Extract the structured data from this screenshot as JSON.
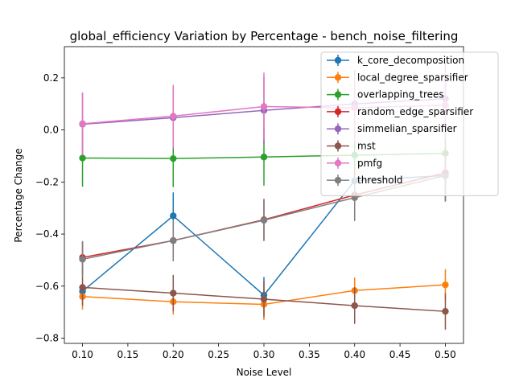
{
  "chart_data": {
    "type": "line",
    "title": "global_efficiency Variation by Percentage - bench_noise_filtering",
    "xlabel": "Noise Level",
    "ylabel": "Percentage Change",
    "xlim": [
      0.08,
      0.52
    ],
    "ylim": [
      -0.82,
      0.32
    ],
    "xticks": [
      0.1,
      0.15,
      0.2,
      0.25,
      0.3,
      0.35,
      0.4,
      0.45,
      0.5
    ],
    "xtick_labels": [
      "0.10",
      "0.15",
      "0.20",
      "0.25",
      "0.30",
      "0.35",
      "0.40",
      "0.45",
      "0.50"
    ],
    "yticks": [
      -0.8,
      -0.6,
      -0.4,
      -0.2,
      0.0,
      0.2
    ],
    "ytick_labels": [
      "−0.8",
      "−0.6",
      "−0.4",
      "−0.2",
      "0.0",
      "0.2"
    ],
    "grid": false,
    "legend_position": "top-right",
    "x": [
      0.1,
      0.2,
      0.3,
      0.4,
      0.5
    ],
    "series": [
      {
        "name": "k_core_decomposition",
        "color": "#1f77b4",
        "values": [
          -0.62,
          -0.33,
          -0.635,
          -0.195,
          -0.175
        ],
        "errors": [
          0.03,
          0.09,
          0.07,
          0.04,
          0.1
        ]
      },
      {
        "name": "local_degree_sparsifier",
        "color": "#ff7f0e",
        "values": [
          -0.64,
          -0.66,
          -0.67,
          -0.617,
          -0.595
        ],
        "errors": [
          0.05,
          0.05,
          0.06,
          0.05,
          0.06
        ]
      },
      {
        "name": "overlapping_trees",
        "color": "#2ca02c",
        "values": [
          -0.108,
          -0.11,
          -0.104,
          -0.097,
          -0.09
        ],
        "errors": [
          0.11,
          0.11,
          0.11,
          0.12,
          0.13
        ]
      },
      {
        "name": "random_edge_sparsifier",
        "color": "#d62728",
        "values": [
          -0.49,
          -0.425,
          -0.345,
          -0.25,
          -0.165
        ],
        "errors": [
          0.06,
          0.07,
          0.08,
          0.09,
          0.1
        ]
      },
      {
        "name": "simmelian_sparsifier",
        "color": "#9467bd",
        "values": [
          0.022,
          0.047,
          0.075,
          0.1,
          0.12
        ],
        "errors": [
          0.12,
          0.12,
          0.13,
          0.13,
          0.14
        ]
      },
      {
        "name": "mst",
        "color": "#8c564b",
        "values": [
          -0.605,
          -0.627,
          -0.65,
          -0.675,
          -0.697
        ],
        "errors": [
          0.07,
          0.07,
          0.07,
          0.07,
          0.07
        ]
      },
      {
        "name": "pmfg",
        "color": "#e377c2",
        "values": [
          0.024,
          0.053,
          0.09,
          0.085,
          0.095
        ],
        "errors": [
          0.12,
          0.12,
          0.13,
          0.13,
          0.13
        ]
      },
      {
        "name": "threshold",
        "color": "#7f7f7f",
        "values": [
          -0.497,
          -0.425,
          -0.347,
          -0.26,
          -0.175
        ],
        "errors": [
          0.07,
          0.08,
          0.08,
          0.09,
          0.1
        ]
      }
    ]
  }
}
